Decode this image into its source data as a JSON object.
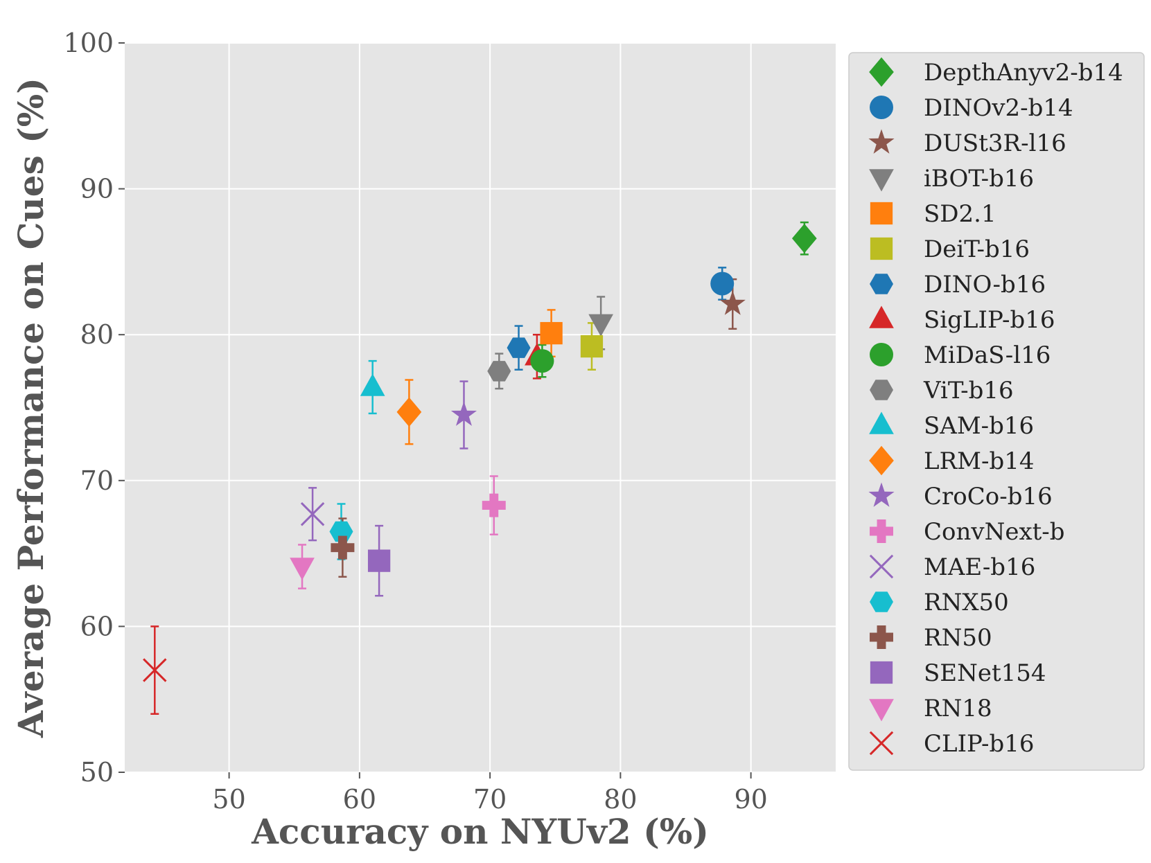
{
  "chart_data": {
    "type": "scatter",
    "xlabel": "Accuracy on NYUv2 (%)",
    "ylabel": "Average Performance on Cues (%)",
    "xlim": [
      42,
      96.5
    ],
    "ylim": [
      50,
      100
    ],
    "xticks": [
      50,
      60,
      70,
      80,
      90
    ],
    "yticks": [
      50,
      60,
      70,
      80,
      90,
      100
    ],
    "grid": true,
    "legend_position": "right",
    "series": [
      {
        "name": "DepthAnyv2-b14",
        "x": 94.1,
        "y": 86.6,
        "err": 1.1,
        "color": "#2ca02c",
        "marker": "diamond"
      },
      {
        "name": "DINOv2-b14",
        "x": 87.8,
        "y": 83.5,
        "err": 1.1,
        "color": "#1f77b4",
        "marker": "circle"
      },
      {
        "name": "DUSt3R-l16",
        "x": 88.6,
        "y": 82.1,
        "err": 1.7,
        "color": "#8c564b",
        "marker": "star"
      },
      {
        "name": "iBOT-b16",
        "x": 78.5,
        "y": 80.8,
        "err": 1.8,
        "color": "#7f7f7f",
        "marker": "triangle-down"
      },
      {
        "name": "SD2.1",
        "x": 74.7,
        "y": 80.1,
        "err": 1.6,
        "color": "#ff7f0e",
        "marker": "square"
      },
      {
        "name": "DeiT-b16",
        "x": 77.8,
        "y": 79.2,
        "err": 1.6,
        "color": "#bcbd22",
        "marker": "square"
      },
      {
        "name": "DINO-b16",
        "x": 72.2,
        "y": 79.1,
        "err": 1.5,
        "color": "#1f77b4",
        "marker": "hexagon"
      },
      {
        "name": "SigLIP-b16",
        "x": 73.6,
        "y": 78.5,
        "err": 1.5,
        "color": "#d62728",
        "marker": "triangle-up"
      },
      {
        "name": "MiDaS-l16",
        "x": 74.0,
        "y": 78.2,
        "err": 1.1,
        "color": "#2ca02c",
        "marker": "circle"
      },
      {
        "name": "ViT-b16",
        "x": 70.7,
        "y": 77.5,
        "err": 1.2,
        "color": "#7f7f7f",
        "marker": "hexagon"
      },
      {
        "name": "SAM-b16",
        "x": 61.0,
        "y": 76.4,
        "err": 1.8,
        "color": "#17becf",
        "marker": "triangle-up"
      },
      {
        "name": "LRM-b14",
        "x": 63.8,
        "y": 74.7,
        "err": 2.2,
        "color": "#ff7f0e",
        "marker": "diamond"
      },
      {
        "name": "CroCo-b16",
        "x": 68.0,
        "y": 74.5,
        "err": 2.3,
        "color": "#9467bd",
        "marker": "star"
      },
      {
        "name": "ConvNext-b",
        "x": 70.3,
        "y": 68.3,
        "err": 2.0,
        "color": "#e377c2",
        "marker": "plus"
      },
      {
        "name": "MAE-b16",
        "x": 56.4,
        "y": 67.7,
        "err": 1.8,
        "color": "#9467bd",
        "marker": "x"
      },
      {
        "name": "RNX50",
        "x": 58.6,
        "y": 66.5,
        "err": 1.9,
        "color": "#17becf",
        "marker": "hexagon"
      },
      {
        "name": "RN50",
        "x": 58.7,
        "y": 65.4,
        "err": 2.0,
        "color": "#8c564b",
        "marker": "plus"
      },
      {
        "name": "SENet154",
        "x": 61.5,
        "y": 64.5,
        "err": 2.4,
        "color": "#9467bd",
        "marker": "square"
      },
      {
        "name": "RN18",
        "x": 55.6,
        "y": 64.1,
        "err": 1.5,
        "color": "#e377c2",
        "marker": "triangle-down"
      },
      {
        "name": "CLIP-b16",
        "x": 44.3,
        "y": 57.0,
        "err": 3.0,
        "color": "#d62728",
        "marker": "x"
      }
    ]
  }
}
